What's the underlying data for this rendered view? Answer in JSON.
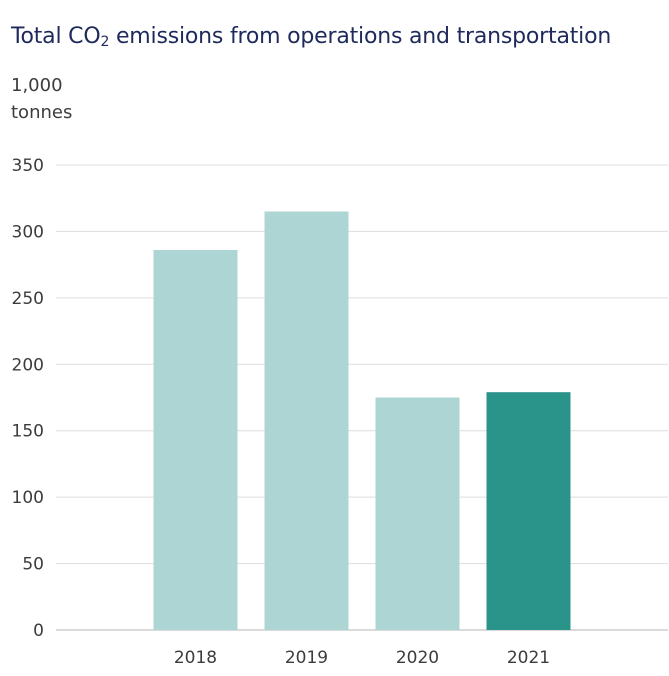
{
  "title_main": "Total CO",
  "title_sub": "2",
  "title_rest": " emissions from operations and transportation",
  "unit_line1": "1,000",
  "unit_line2": "tonnes",
  "colors": {
    "default_bar": "#acd5d4",
    "highlight_bar": "#2a938a",
    "grid": "#dddddd",
    "axis": "#b5b5b5",
    "title": "#1f2a5c"
  },
  "chart_data": {
    "type": "bar",
    "title": "Total CO2 emissions from operations and transportation",
    "ylabel": "1,000 tonnes",
    "xlabel": "",
    "categories": [
      "2018",
      "2019",
      "2020",
      "2021"
    ],
    "values": [
      286,
      315,
      175,
      179
    ],
    "highlight": "2021",
    "ylim": [
      0,
      350
    ],
    "yticks": [
      0,
      50,
      100,
      150,
      200,
      250,
      300,
      350
    ],
    "grid": true
  }
}
